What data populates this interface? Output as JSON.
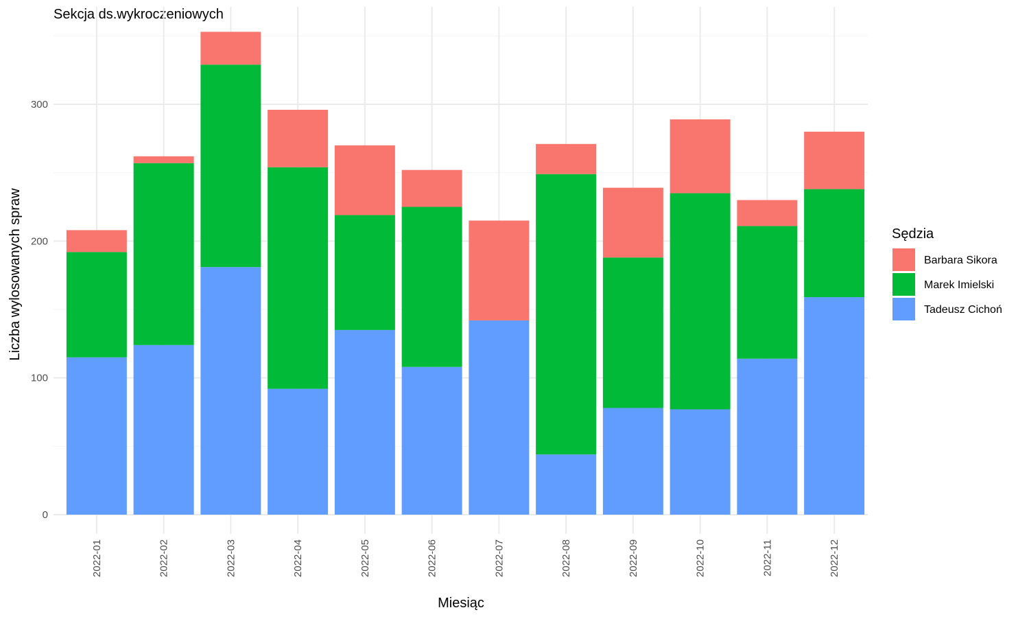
{
  "chart_data": {
    "type": "bar",
    "stacked": true,
    "title": "Sekcja ds.wykroczeniowych",
    "xlabel": "Miesiąc",
    "ylabel": "Liczba wylosowanych spraw",
    "ylim": [
      0,
      360
    ],
    "yticks": [
      0,
      100,
      200,
      300
    ],
    "grid": true,
    "legend_title": "Sędzia",
    "legend_position": "right",
    "categories": [
      "2022-01",
      "2022-02",
      "2022-03",
      "2022-04",
      "2022-05",
      "2022-06",
      "2022-07",
      "2022-08",
      "2022-09",
      "2022-10",
      "2022-11",
      "2022-12"
    ],
    "series": [
      {
        "name": "Tadeusz Cichoń",
        "color": "#619CFF",
        "values": [
          115,
          124,
          181,
          92,
          135,
          108,
          142,
          44,
          78,
          77,
          114,
          159
        ]
      },
      {
        "name": "Marek Imielski",
        "color": "#00BA38",
        "values": [
          77,
          133,
          148,
          162,
          84,
          117,
          0,
          205,
          110,
          158,
          97,
          79
        ]
      },
      {
        "name": "Barbara Sikora",
        "color": "#F8766D",
        "values": [
          16,
          5,
          24,
          42,
          51,
          27,
          73,
          22,
          51,
          54,
          19,
          42
        ]
      }
    ],
    "legend_order": [
      "Barbara Sikora",
      "Marek Imielski",
      "Tadeusz Cichoń"
    ]
  }
}
